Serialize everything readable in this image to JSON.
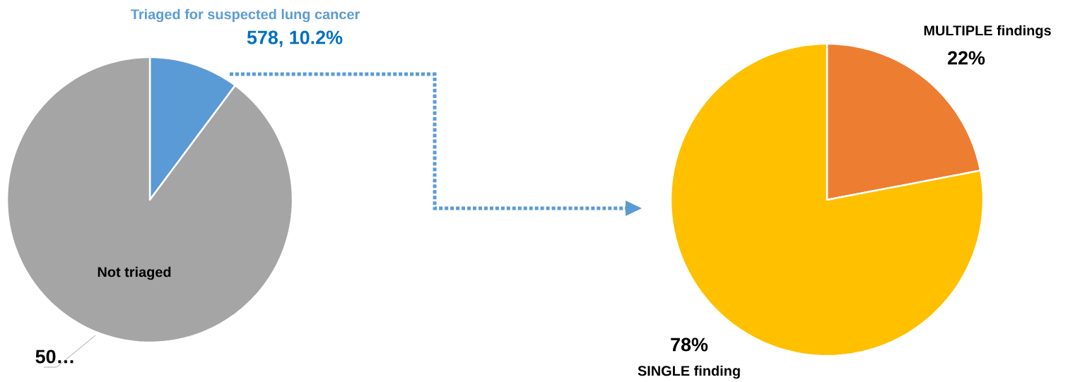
{
  "chart_data": [
    {
      "type": "pie",
      "categories": [
        "Triaged for suspected lung cancer",
        "Not triaged"
      ],
      "values": [
        10.2,
        89.8
      ],
      "colors": [
        "#5b9bd5",
        "#a5a5a5"
      ],
      "value_labels": [
        "578, 10.2%",
        "50…"
      ]
    },
    {
      "type": "pie",
      "categories": [
        "MULTIPLE findings",
        "SINGLE finding"
      ],
      "values": [
        22,
        78
      ],
      "colors": [
        "#ed7d31",
        "#ffc000"
      ],
      "value_labels": [
        "22%",
        "78%"
      ]
    }
  ]
}
